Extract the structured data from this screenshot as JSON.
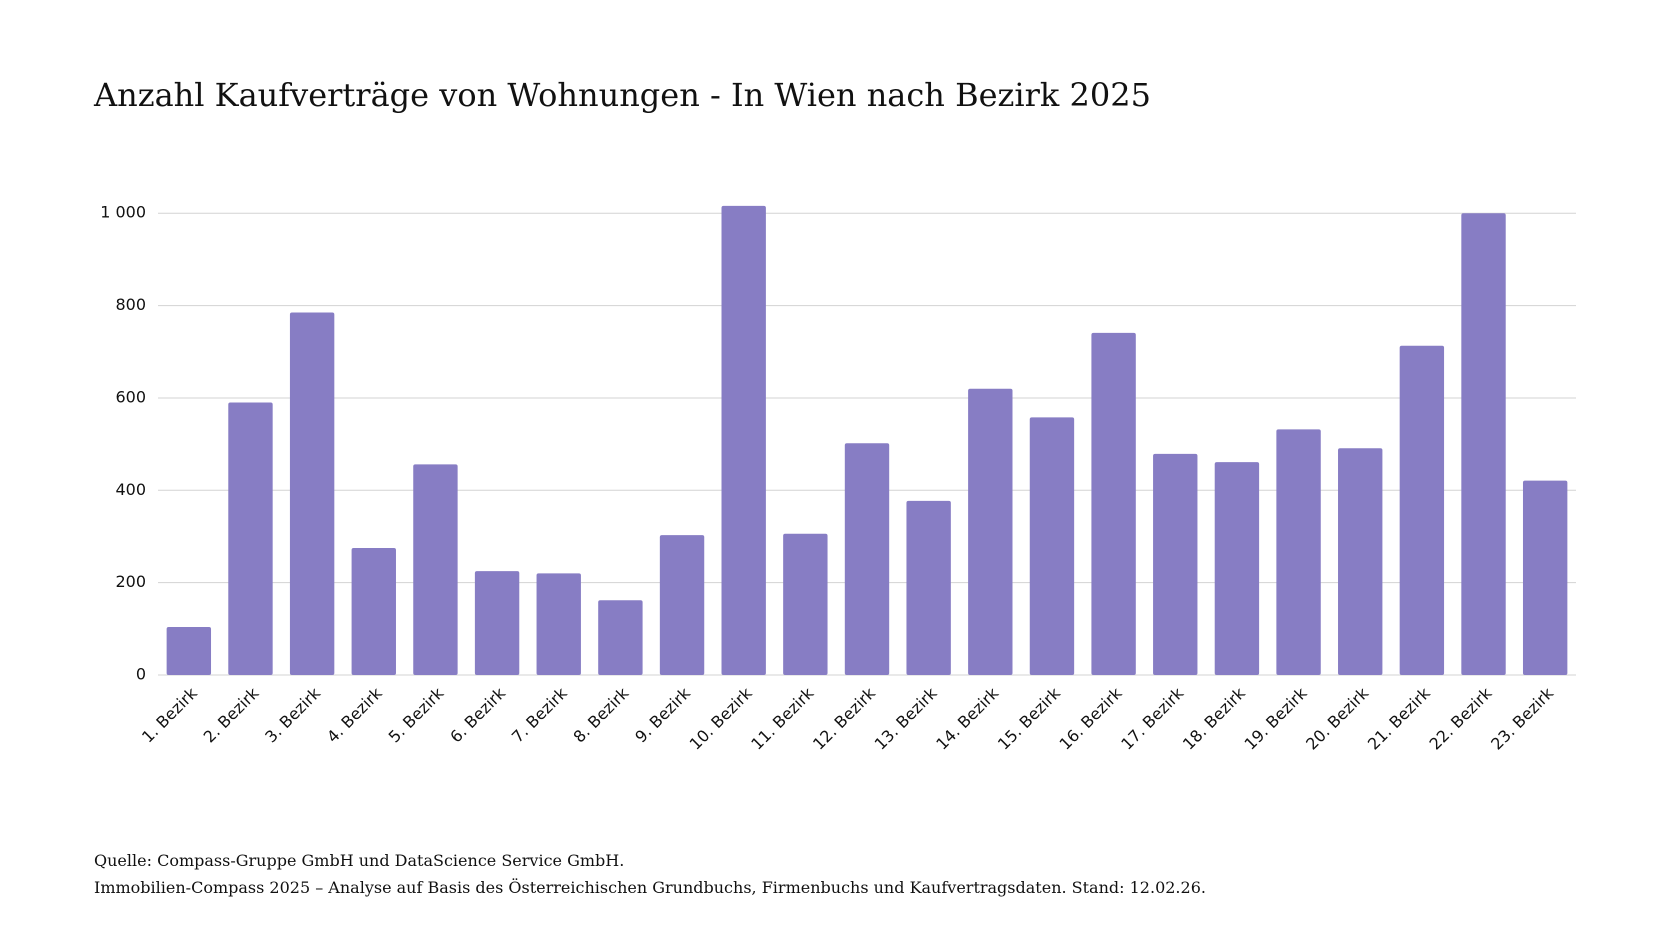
{
  "chart_data": {
    "type": "bar",
    "title": "Anzahl Kaufverträge von Wohnungen - In Wien nach Bezirk 2025",
    "categories": [
      "1. Bezirk",
      "2. Bezirk",
      "3. Bezirk",
      "4. Bezirk",
      "5. Bezirk",
      "6. Bezirk",
      "7. Bezirk",
      "8. Bezirk",
      "9. Bezirk",
      "10. Bezirk",
      "11. Bezirk",
      "12. Bezirk",
      "13. Bezirk",
      "14. Bezirk",
      "15. Bezirk",
      "16. Bezirk",
      "17. Bezirk",
      "18. Bezirk",
      "19. Bezirk",
      "20. Bezirk",
      "21. Bezirk",
      "22. Bezirk",
      "23. Bezirk"
    ],
    "values": [
      104,
      590,
      785,
      275,
      456,
      225,
      220,
      162,
      303,
      1016,
      306,
      502,
      377,
      620,
      558,
      741,
      479,
      461,
      532,
      491,
      713,
      1000,
      421
    ],
    "color": "#877dc4",
    "ylim": [
      0,
      1020
    ],
    "yticks": [
      0,
      200,
      400,
      600,
      800,
      {
        "value": 1000,
        "label": "1 000"
      }
    ],
    "grid": true,
    "footnotes": [
      "Quelle: Compass-Gruppe GmbH und DataScience Service GmbH.",
      "Immobilien-Compass 2025 – Analyse auf Basis des Österreichischen Grundbuchs, Firmenbuchs und Kaufvertragsdaten. Stand: 12.02.26."
    ]
  }
}
